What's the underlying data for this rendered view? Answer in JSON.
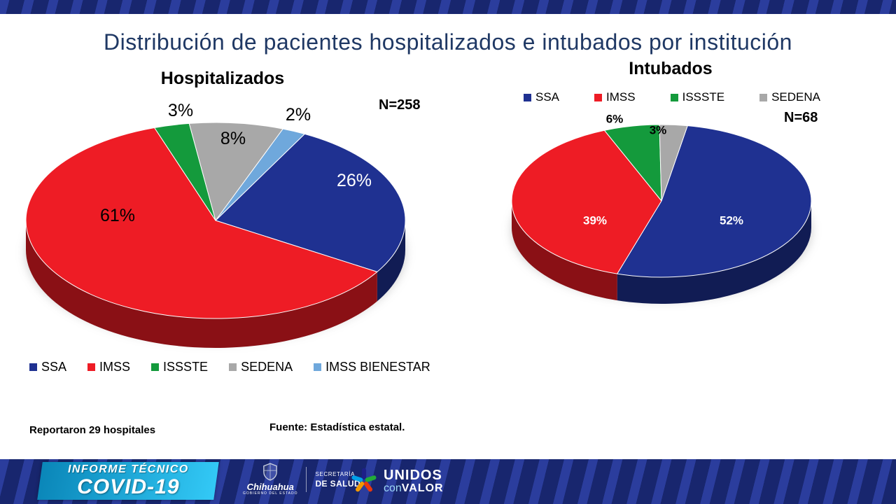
{
  "slide": {
    "title": "Distribución de pacientes hospitalizados e intubados por institución",
    "title_color": "#1f3864",
    "footnote_left": "Reportaron 29 hospitales",
    "footnote_source": "Fuente: Estadística estatal."
  },
  "chart_data": [
    {
      "type": "pie",
      "title": "Hospitalizados",
      "n_label": "N=258",
      "legend_position": "bottom",
      "start_angle_deg": 28,
      "style": "3d",
      "slices": [
        {
          "label": "SSA",
          "percent": 26,
          "color": "#1f3191",
          "label_color": "#ffffff"
        },
        {
          "label": "IMSS",
          "percent": 61,
          "color": "#ee1c25",
          "label_color": "#000000"
        },
        {
          "label": "ISSSTE",
          "percent": 3,
          "color": "#149a3c",
          "label_color": "#000000",
          "label_outside": true
        },
        {
          "label": "SEDENA",
          "percent": 8,
          "color": "#a8a8a8",
          "label_color": "#000000"
        },
        {
          "label": "IMSS BIENESTAR",
          "percent": 2,
          "color": "#6fa8dc",
          "label_color": "#000000",
          "label_outside": true
        }
      ]
    },
    {
      "type": "pie",
      "title": "Intubados",
      "n_label": "N=68",
      "legend_position": "top",
      "start_angle_deg": 10,
      "style": "3d",
      "slices": [
        {
          "label": "SSA",
          "percent": 52,
          "color": "#1f3191",
          "label_color": "#ffffff"
        },
        {
          "label": "IMSS",
          "percent": 39,
          "color": "#ee1c25",
          "label_color": "#ffffff"
        },
        {
          "label": "ISSSTE",
          "percent": 6,
          "color": "#149a3c",
          "label_color": "#000000",
          "label_outside": true
        },
        {
          "label": "SEDENA",
          "percent": 3,
          "color": "#a8a8a8",
          "label_color": "#000000",
          "label_outside": true
        }
      ]
    }
  ],
  "footer": {
    "banner_line1": "INFORME TÉCNICO",
    "banner_line2": "COVID-19",
    "banner_gradient": [
      "#0a86b8",
      "#33c9f6"
    ],
    "gov_name": "Chihuahua",
    "gov_sub": "GOBIERNO DEL ESTADO",
    "sec_line1": "SECRETARÍA",
    "sec_line2": "DE SALUD",
    "brand_line1": "UNIDOS",
    "brand_con": "con",
    "brand_valor": "VALOR",
    "pinwheel_colors": [
      "#1d2088",
      "#22ac38",
      "#e8380d",
      "#f39800",
      "#00a0e9"
    ]
  }
}
